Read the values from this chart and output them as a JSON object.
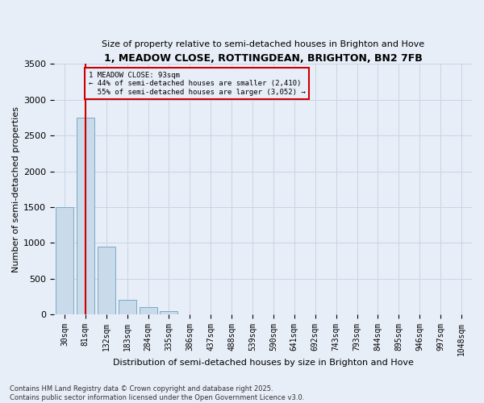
{
  "title": "1, MEADOW CLOSE, ROTTINGDEAN, BRIGHTON, BN2 7FB",
  "subtitle": "Size of property relative to semi-detached houses in Brighton and Hove",
  "xlabel": "Distribution of semi-detached houses by size in Brighton and Hove",
  "ylabel": "Number of semi-detached properties",
  "categories": [
    "30sqm",
    "81sqm",
    "132sqm",
    "183sqm",
    "284sqm",
    "335sqm",
    "386sqm",
    "437sqm",
    "488sqm",
    "539sqm",
    "590sqm",
    "641sqm",
    "692sqm",
    "743sqm",
    "793sqm",
    "844sqm",
    "895sqm",
    "946sqm",
    "997sqm",
    "1048sqm"
  ],
  "values": [
    1500,
    2750,
    950,
    200,
    100,
    40,
    5,
    2,
    0,
    0,
    0,
    0,
    0,
    0,
    0,
    0,
    0,
    0,
    0,
    0
  ],
  "bar_color": "#c9daea",
  "bar_edge_color": "#7aaac8",
  "property_bin_index": 1,
  "property_label": "1 MEADOW CLOSE: 93sqm",
  "pct_smaller": 44,
  "n_smaller": 2410,
  "pct_larger": 55,
  "n_larger": 3052,
  "vline_color": "#cc0000",
  "annotation_box_color": "#cc0000",
  "ylim": [
    0,
    3500
  ],
  "yticks": [
    0,
    500,
    1000,
    1500,
    2000,
    2500,
    3000,
    3500
  ],
  "grid_color": "#c8d4e4",
  "background_color": "#e8eef8",
  "footer1": "Contains HM Land Registry data © Crown copyright and database right 2025.",
  "footer2": "Contains public sector information licensed under the Open Government Licence v3.0."
}
